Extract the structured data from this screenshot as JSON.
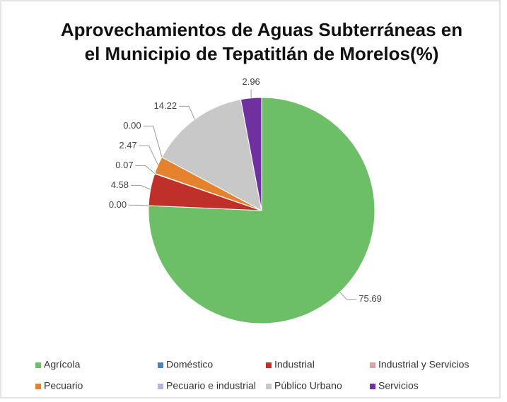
{
  "chart_data": {
    "type": "pie",
    "title": "Aprovechamientos de Aguas Subterráneas en el Municipio de Tepatitlán de Morelos(%)",
    "categories": [
      "Agrícola",
      "Doméstico",
      "Industrial",
      "Industrial y Servicios",
      "Pecuario",
      "Pecuario e industrial",
      "Público Urbano",
      "Servicios"
    ],
    "values": [
      75.69,
      0,
      4.58,
      0.07,
      2.47,
      0,
      14.22,
      2.96
    ],
    "value_labels": [
      "75.69",
      "0.00",
      "4.58",
      "0.07",
      "2.47",
      "0.00",
      "14.22",
      "2.96"
    ],
    "colors": [
      "#6dbf67",
      "#4f81bd",
      "#c0302b",
      "#d9a3a3",
      "#e5822e",
      "#b4b4dc",
      "#c8c8c8",
      "#7030a0"
    ],
    "legend": "bottom"
  }
}
